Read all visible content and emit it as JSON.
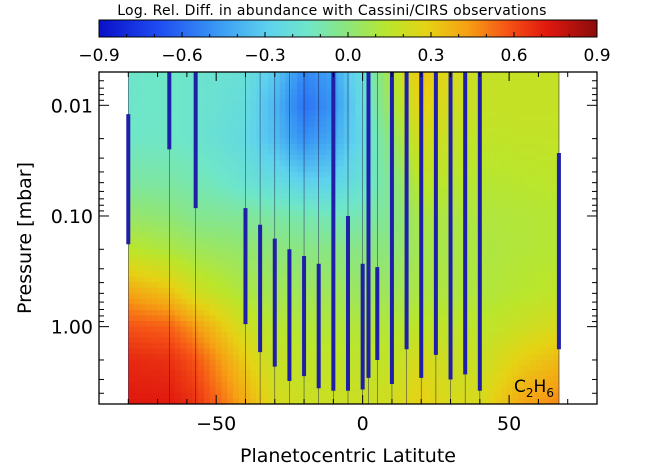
{
  "chart_data": {
    "type": "heatmap",
    "title": "Log. Rel. Diff. in abundance with Cassini/CIRS observations",
    "xlabel": "Planetocentric Latitute",
    "ylabel": "Pressure [mbar]",
    "annotation": {
      "species": "C",
      "subscript1": "2",
      "species2": "H",
      "subscript2": "6"
    },
    "xlim": [
      -90,
      80
    ],
    "ylim": [
      5.0,
      0.005
    ],
    "yscale": "log",
    "x_ticks": [
      {
        "value": -50,
        "label": "−50"
      },
      {
        "value": 0,
        "label": "0"
      },
      {
        "value": 50,
        "label": "50"
      }
    ],
    "y_ticks": [
      {
        "value": 0.01,
        "label": "0.01"
      },
      {
        "value": 0.1,
        "label": "0.10"
      },
      {
        "value": 1.0,
        "label": "1.00"
      }
    ],
    "colorbar": {
      "range": [
        -0.9,
        0.9
      ],
      "ticks": [
        {
          "value": -0.9,
          "label": "−0.9"
        },
        {
          "value": -0.6,
          "label": "−0.6"
        },
        {
          "value": -0.3,
          "label": "−0.3"
        },
        {
          "value": 0.0,
          "label": "0.0"
        },
        {
          "value": 0.3,
          "label": "0.3"
        },
        {
          "value": 0.6,
          "label": "0.6"
        },
        {
          "value": 0.9,
          "label": "0.9"
        }
      ]
    },
    "data_extent_lat": [
      -80,
      67
    ],
    "observation_latitudes": [
      -80,
      -66,
      -57,
      -40,
      -35,
      -30,
      -25,
      -20,
      -15,
      -10,
      -5,
      0,
      2,
      5,
      10,
      15,
      20,
      25,
      30,
      35,
      40,
      67
    ],
    "retrieval_bars": [
      {
        "lat": -80,
        "p_top": 0.012,
        "p_bottom": 0.18
      },
      {
        "lat": -66,
        "p_top": 0.005,
        "p_bottom": 0.025
      },
      {
        "lat": -57,
        "p_top": 0.005,
        "p_bottom": 0.085
      },
      {
        "lat": -40,
        "p_top": 0.085,
        "p_bottom": 0.95
      },
      {
        "lat": -35,
        "p_top": 0.12,
        "p_bottom": 1.7
      },
      {
        "lat": -30,
        "p_top": 0.16,
        "p_bottom": 2.3
      },
      {
        "lat": -25,
        "p_top": 0.2,
        "p_bottom": 3.1
      },
      {
        "lat": -20,
        "p_top": 0.23,
        "p_bottom": 2.8
      },
      {
        "lat": -15,
        "p_top": 0.27,
        "p_bottom": 3.6
      },
      {
        "lat": -10,
        "p_top": 0.005,
        "p_bottom": 3.8
      },
      {
        "lat": -5,
        "p_top": 0.1,
        "p_bottom": 3.8
      },
      {
        "lat": 0,
        "p_top": 0.27,
        "p_bottom": 3.7
      },
      {
        "lat": 2,
        "p_top": 0.005,
        "p_bottom": 2.9
      },
      {
        "lat": 5,
        "p_top": 0.29,
        "p_bottom": 2.0
      },
      {
        "lat": 10,
        "p_top": 0.005,
        "p_bottom": 3.3
      },
      {
        "lat": 15,
        "p_top": 0.005,
        "p_bottom": 1.6
      },
      {
        "lat": 20,
        "p_top": 0.005,
        "p_bottom": 2.9
      },
      {
        "lat": 25,
        "p_top": 0.005,
        "p_bottom": 1.8
      },
      {
        "lat": 30,
        "p_top": 0.005,
        "p_bottom": 3.0
      },
      {
        "lat": 35,
        "p_top": 0.005,
        "p_bottom": 2.7
      },
      {
        "lat": 40,
        "p_top": 0.005,
        "p_bottom": 3.8
      },
      {
        "lat": 67,
        "p_top": 0.027,
        "p_bottom": 1.6
      }
    ],
    "grid_lat": [
      -80,
      -66,
      -57,
      -40,
      -30,
      -20,
      -10,
      0,
      10,
      20,
      30,
      40,
      55,
      67
    ],
    "grid_p": [
      0.005,
      0.01,
      0.02,
      0.05,
      0.1,
      0.2,
      0.5,
      1.0,
      2.0,
      5.0
    ],
    "values": [
      [
        -0.15,
        -0.15,
        -0.14,
        -0.07,
        0.03,
        0.15,
        0.42,
        0.58,
        0.68,
        0.72
      ],
      [
        -0.14,
        -0.14,
        -0.14,
        -0.08,
        0.0,
        0.1,
        0.34,
        0.55,
        0.66,
        0.72
      ],
      [
        -0.16,
        -0.16,
        -0.16,
        -0.1,
        -0.04,
        0.06,
        0.22,
        0.44,
        0.58,
        0.66
      ],
      [
        -0.2,
        -0.22,
        -0.24,
        -0.18,
        -0.06,
        0.02,
        0.1,
        0.2,
        0.3,
        0.4
      ],
      [
        -0.32,
        -0.38,
        -0.36,
        -0.22,
        -0.08,
        0.0,
        0.07,
        0.14,
        0.18,
        0.24
      ],
      [
        -0.52,
        -0.58,
        -0.5,
        -0.28,
        -0.1,
        -0.02,
        0.06,
        0.12,
        0.16,
        0.2
      ],
      [
        -0.44,
        -0.48,
        -0.42,
        -0.28,
        -0.12,
        -0.02,
        0.06,
        0.12,
        0.16,
        0.2
      ],
      [
        -0.2,
        -0.22,
        -0.24,
        -0.18,
        -0.1,
        -0.02,
        0.05,
        0.12,
        0.16,
        0.2
      ],
      [
        0.12,
        0.08,
        0.02,
        -0.04,
        -0.04,
        0.0,
        0.06,
        0.12,
        0.17,
        0.22
      ],
      [
        0.34,
        0.3,
        0.24,
        0.16,
        0.1,
        0.08,
        0.1,
        0.16,
        0.24,
        0.3
      ],
      [
        0.24,
        0.22,
        0.18,
        0.14,
        0.1,
        0.09,
        0.11,
        0.16,
        0.2,
        0.24
      ],
      [
        0.18,
        0.18,
        0.16,
        0.13,
        0.11,
        0.1,
        0.11,
        0.15,
        0.19,
        0.24
      ],
      [
        0.18,
        0.18,
        0.17,
        0.14,
        0.12,
        0.12,
        0.14,
        0.2,
        0.3,
        0.42
      ],
      [
        0.18,
        0.18,
        0.17,
        0.15,
        0.13,
        0.13,
        0.16,
        0.24,
        0.36,
        0.48
      ]
    ]
  }
}
